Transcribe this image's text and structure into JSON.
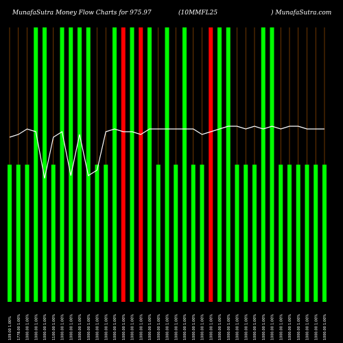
{
  "header": {
    "left": "MunafaSutra  Money Flow  Charts for 975.97",
    "middle": "(10MMFL25",
    "right": ") MunafaSutra.com"
  },
  "chart_data": {
    "type": "bar",
    "title": "Money Flow Charts for 975.97 (10MMFL25)",
    "ylim": [
      0,
      100
    ],
    "bar_color_up": "#00ff00",
    "bar_color_down": "#ff0000",
    "line_color": "#ffffff",
    "grid_color": "#b85c00",
    "categories": [
      "109.00 1.00%",
      "1778.00 1.00%",
      "1000.00 1.00%",
      "1000.00 1.00%",
      "1000.00 1.00%",
      "1100.00 1.00%",
      "1000.00 1.00%",
      "1000.00 1.00%",
      "1000.00 1.00%",
      "1000.00 1.00%",
      "1000.00 1.00%",
      "1000.00 1.00%",
      "1000.00 1.00%",
      "1000.00 1.00%",
      "1000.00 1.00%",
      "1000.00 1.00%",
      "1000.00 1.00%",
      "1000.00 1.00%",
      "1000.00 1.00%",
      "1000.00 1.00%",
      "1000.00 1.00%",
      "1000.00 1.00%",
      "1000.00 1.00%",
      "1000.00 1.00%",
      "1000.00 1.00%",
      "1000.00 1.00%",
      "1000.00 1.00%",
      "1000.00 1.00%",
      "1000.00 1.00%",
      "1000.00 1.00%",
      "1000.00 1.00%",
      "1000.00 1.00%",
      "1000.00 1.00%",
      "1000.00 1.00%",
      "1000.00 1.00%",
      "1000.00 1.00%",
      "1000.00 1.00%"
    ],
    "series": [
      {
        "values": [
          50,
          50,
          50,
          100,
          100,
          50,
          100,
          100,
          100,
          100,
          50,
          50,
          100,
          100,
          100,
          100,
          100,
          50,
          100,
          50,
          100,
          50,
          50,
          100,
          100,
          100,
          50,
          50,
          50,
          100,
          100,
          50,
          50,
          50,
          50,
          50,
          50
        ],
        "directions": [
          "up",
          "up",
          "up",
          "up",
          "up",
          "up",
          "up",
          "up",
          "up",
          "up",
          "up",
          "up",
          "up",
          "down",
          "up",
          "down",
          "up",
          "up",
          "up",
          "up",
          "up",
          "up",
          "up",
          "down",
          "up",
          "up",
          "up",
          "up",
          "up",
          "up",
          "up",
          "up",
          "up",
          "up",
          "up",
          "up",
          "up"
        ]
      },
      {
        "values": [
          60,
          61,
          63,
          62,
          45,
          60,
          62,
          46,
          61,
          46,
          48,
          62,
          63,
          62,
          62,
          61,
          63,
          63,
          63,
          63,
          63,
          63,
          61,
          62,
          63,
          64,
          64,
          63,
          64,
          63,
          64,
          63,
          64,
          64,
          63,
          63,
          63
        ]
      }
    ]
  }
}
